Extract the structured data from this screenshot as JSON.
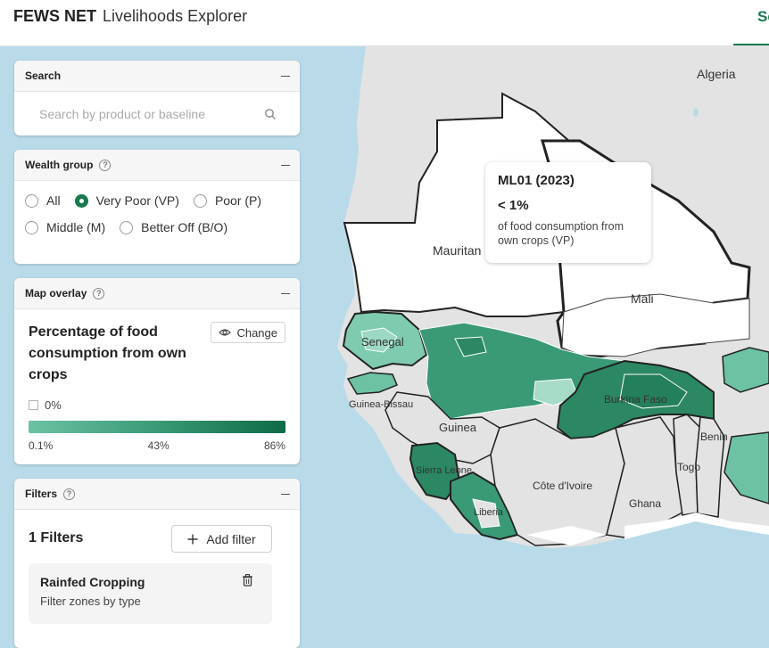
{
  "header": {
    "brand_bold": "FEWS NET",
    "brand_light": "Livelihoods Explorer",
    "tab_visible": "Se"
  },
  "search": {
    "title": "Search",
    "placeholder": "Search by product or baseline"
  },
  "wealth_group": {
    "title": "Wealth group",
    "options": [
      {
        "label": "All",
        "selected": false
      },
      {
        "label": "Very Poor (VP)",
        "selected": true
      },
      {
        "label": "Poor (P)",
        "selected": false
      },
      {
        "label": "Middle (M)",
        "selected": false
      },
      {
        "label": "Better Off (B/O)",
        "selected": false
      }
    ]
  },
  "map_overlay": {
    "title": "Map overlay",
    "heading": "Percentage of food consumption from own crops",
    "change_label": "Change",
    "zero_label": "0%",
    "legend_min": "0.1%",
    "legend_mid": "43%",
    "legend_max": "86%",
    "colors": {
      "low": "#6cc2a3",
      "high": "#0f6b46"
    }
  },
  "filters": {
    "title": "Filters",
    "count_label": "1 Filters",
    "add_label": "Add filter",
    "items": [
      {
        "name": "Rainfed Cropping",
        "description": "Filter zones by type"
      }
    ]
  },
  "tooltip": {
    "title": "ML01 (2023)",
    "value": "< 1%",
    "description": "of food consumption from own crops (VP)"
  },
  "map_labels": {
    "algeria": "Algeria",
    "mauritania": "Mauritan",
    "mali": "Mali",
    "senegal": "Senegal",
    "guinea_bissau": "Guinea-Bissau",
    "guinea": "Guinea",
    "burkina_faso": "Burkina Faso",
    "benin": "Benin",
    "togo": "Togo",
    "sierra_leone": "Sierra Leone",
    "liberia": "Liberia",
    "cote_divoire": "Côte d'Ivoire",
    "ghana": "Ghana"
  },
  "accent_color": "#157a4c"
}
